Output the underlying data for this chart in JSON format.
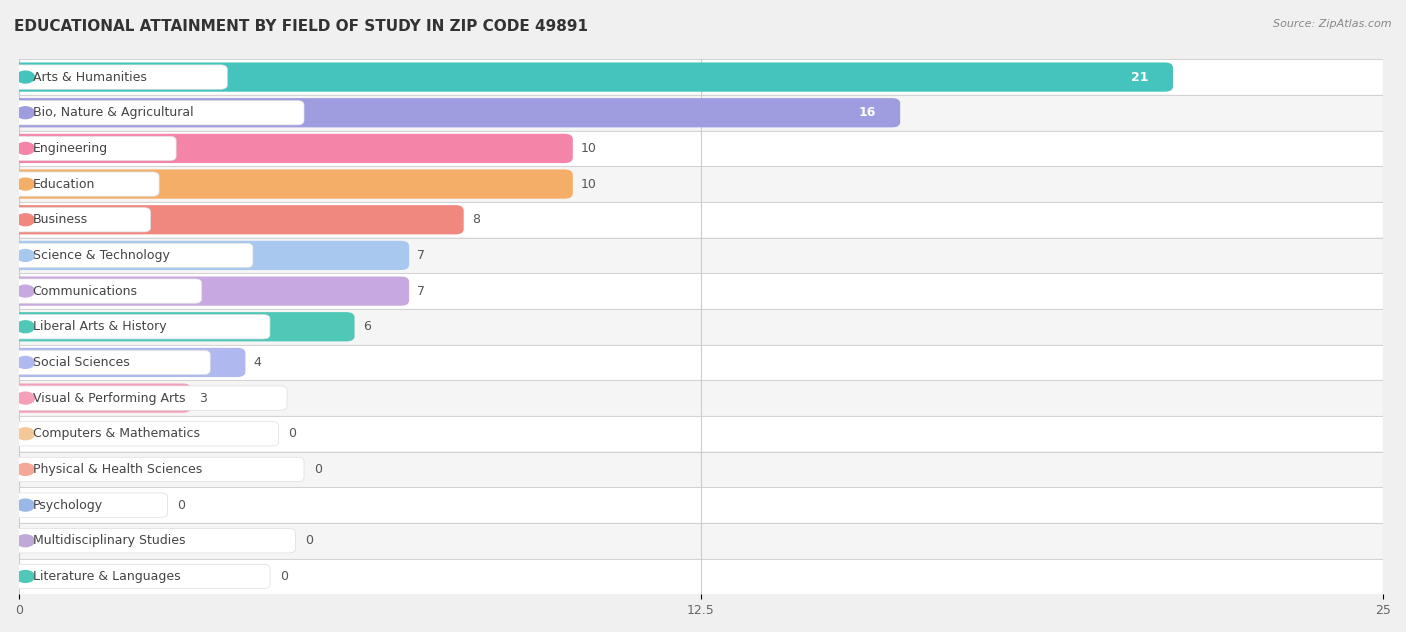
{
  "title": "EDUCATIONAL ATTAINMENT BY FIELD OF STUDY IN ZIP CODE 49891",
  "source": "Source: ZipAtlas.com",
  "categories": [
    "Arts & Humanities",
    "Bio, Nature & Agricultural",
    "Engineering",
    "Education",
    "Business",
    "Science & Technology",
    "Communications",
    "Liberal Arts & History",
    "Social Sciences",
    "Visual & Performing Arts",
    "Computers & Mathematics",
    "Physical & Health Sciences",
    "Psychology",
    "Multidisciplinary Studies",
    "Literature & Languages"
  ],
  "values": [
    21,
    16,
    10,
    10,
    8,
    7,
    7,
    6,
    4,
    3,
    0,
    0,
    0,
    0,
    0
  ],
  "bar_colors": [
    "#45c4be",
    "#9d9de0",
    "#f585a8",
    "#f5ae68",
    "#f08880",
    "#a8c8f0",
    "#c8a8e0",
    "#50c8b8",
    "#b0b8f0",
    "#f5a0b8",
    "#f5c898",
    "#f5a898",
    "#98b8e8",
    "#c0a8d8",
    "#50c8b8"
  ],
  "row_colors": [
    "#ffffff",
    "#f5f5f5"
  ],
  "xlim": [
    0,
    25
  ],
  "xticks": [
    0,
    12.5,
    25
  ],
  "background_color": "#f0f0f0",
  "title_fontsize": 11,
  "label_fontsize": 9,
  "value_fontsize": 9,
  "value_inside_threshold": 14
}
